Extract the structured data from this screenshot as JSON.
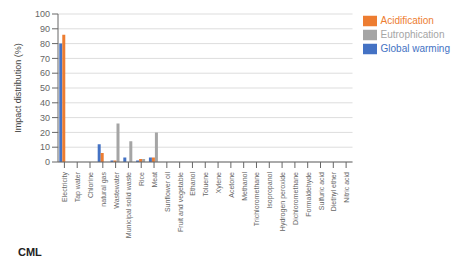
{
  "chart_data": {
    "type": "bar",
    "categories": [
      "Electricity",
      "Tap water",
      "Chlorine",
      "natural gas",
      "Wastewater",
      "Municipal solid waste",
      "Rice",
      "Meat",
      "Sunflower oil",
      "Fruit and vegetable",
      "Ethanol",
      "Toluene",
      "Xylene",
      "Acetone",
      "Methanol",
      "Trichloromethane",
      "Isopropanol",
      "Hydrogen peroxide",
      "Dichloromethane",
      "Formaldehyde",
      "Sulfuric acid",
      "Diethyl ether",
      "Nitric acid"
    ],
    "series": [
      {
        "name": "Global warming",
        "color": "#4472c4",
        "values": [
          80,
          0,
          0,
          12,
          1,
          3,
          1,
          3,
          0,
          0,
          0,
          0,
          0,
          0,
          0,
          0,
          0,
          0,
          0,
          0,
          0,
          0,
          0
        ]
      },
      {
        "name": "Acidification",
        "color": "#ed7d31",
        "values": [
          86,
          0,
          0,
          6,
          1,
          0,
          2,
          3,
          0,
          0,
          0,
          0,
          0,
          0,
          0,
          0,
          0,
          0,
          0,
          0,
          0,
          0,
          0
        ]
      },
      {
        "name": "Eutrophication",
        "color": "#a5a5a5",
        "values": [
          0,
          0,
          0,
          0,
          26,
          14,
          2,
          20,
          0,
          0,
          0,
          0,
          0,
          0,
          0,
          0,
          0,
          0,
          0,
          0,
          0,
          0,
          0
        ]
      }
    ],
    "ylabel": "Impact distribution (%)",
    "xlabel": "CML",
    "ylim": [
      0,
      100
    ],
    "yticks": [
      0,
      10,
      20,
      30,
      40,
      50,
      60,
      70,
      80,
      90,
      100
    ],
    "grid": true,
    "legend": "right"
  }
}
